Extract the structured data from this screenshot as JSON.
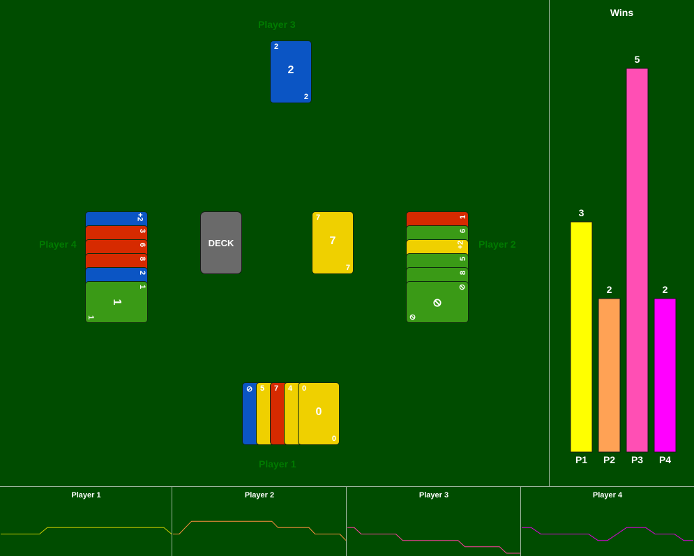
{
  "players": {
    "p1": "Player 1",
    "p2": "Player 2",
    "p3": "Player 3",
    "p4": "Player 4"
  },
  "deck_label": "DECK",
  "colors": {
    "blue": "#0b55c4",
    "red": "#d62a00",
    "yellow": "#efd000",
    "green": "#3a9a16"
  },
  "player3_card": {
    "value": "2",
    "color": "blue"
  },
  "discard_card": {
    "value": "7",
    "color": "yellow"
  },
  "player4_hand": [
    {
      "value": "+2",
      "color": "blue"
    },
    {
      "value": "3",
      "color": "red"
    },
    {
      "value": "6",
      "color": "red"
    },
    {
      "value": "8",
      "color": "red"
    },
    {
      "value": "2",
      "color": "blue"
    },
    {
      "value": "1",
      "color": "green"
    }
  ],
  "player2_hand": [
    {
      "value": "1",
      "color": "red"
    },
    {
      "value": "6",
      "color": "green"
    },
    {
      "value": "+2",
      "color": "yellow"
    },
    {
      "value": "5",
      "color": "green"
    },
    {
      "value": "8",
      "color": "green"
    },
    {
      "value": "skip",
      "color": "green"
    }
  ],
  "player1_hand": [
    {
      "value": "skip",
      "color": "blue"
    },
    {
      "value": "5",
      "color": "yellow"
    },
    {
      "value": "7",
      "color": "red"
    },
    {
      "value": "4",
      "color": "yellow"
    },
    {
      "value": "0",
      "color": "yellow"
    }
  ],
  "chart_data": {
    "type": "bar",
    "title": "Wins",
    "categories": [
      "P1",
      "P2",
      "P3",
      "P4"
    ],
    "values": [
      3,
      2,
      5,
      2
    ],
    "colors": [
      "#ffff00",
      "#ffa255",
      "#ff4fb4",
      "#ff00ff"
    ],
    "ylim": [
      0,
      5
    ],
    "xlabel": "",
    "ylabel": ""
  },
  "history_panels": [
    {
      "title": "Player 1",
      "color": "#cccc00",
      "values": [
        3,
        3,
        3,
        3,
        3,
        3,
        4,
        4,
        4,
        4,
        4,
        4,
        4,
        4,
        4,
        4,
        4,
        4,
        4,
        4,
        4,
        4,
        3
      ]
    },
    {
      "title": "Player 2",
      "color": "#ff9040",
      "values": [
        3,
        3,
        4,
        5,
        5,
        5,
        5,
        5,
        5,
        5,
        5,
        5,
        5,
        5,
        5,
        5,
        5,
        4,
        4,
        4,
        4,
        4,
        4,
        3,
        3,
        3,
        3,
        3,
        2
      ]
    },
    {
      "title": "Player 3",
      "color": "#ff3fa0",
      "values": [
        4,
        4,
        3,
        3,
        3,
        3,
        3,
        3,
        2,
        2,
        2,
        2,
        2,
        2,
        2,
        2,
        2,
        1,
        1,
        1,
        1,
        1,
        1,
        0,
        0,
        0
      ]
    },
    {
      "title": "Player 4",
      "color": "#dd00dd",
      "values": [
        4,
        4,
        3,
        3,
        3,
        3,
        3,
        3,
        2,
        2,
        3,
        4,
        4,
        4,
        3,
        3,
        3,
        2,
        2
      ]
    }
  ]
}
